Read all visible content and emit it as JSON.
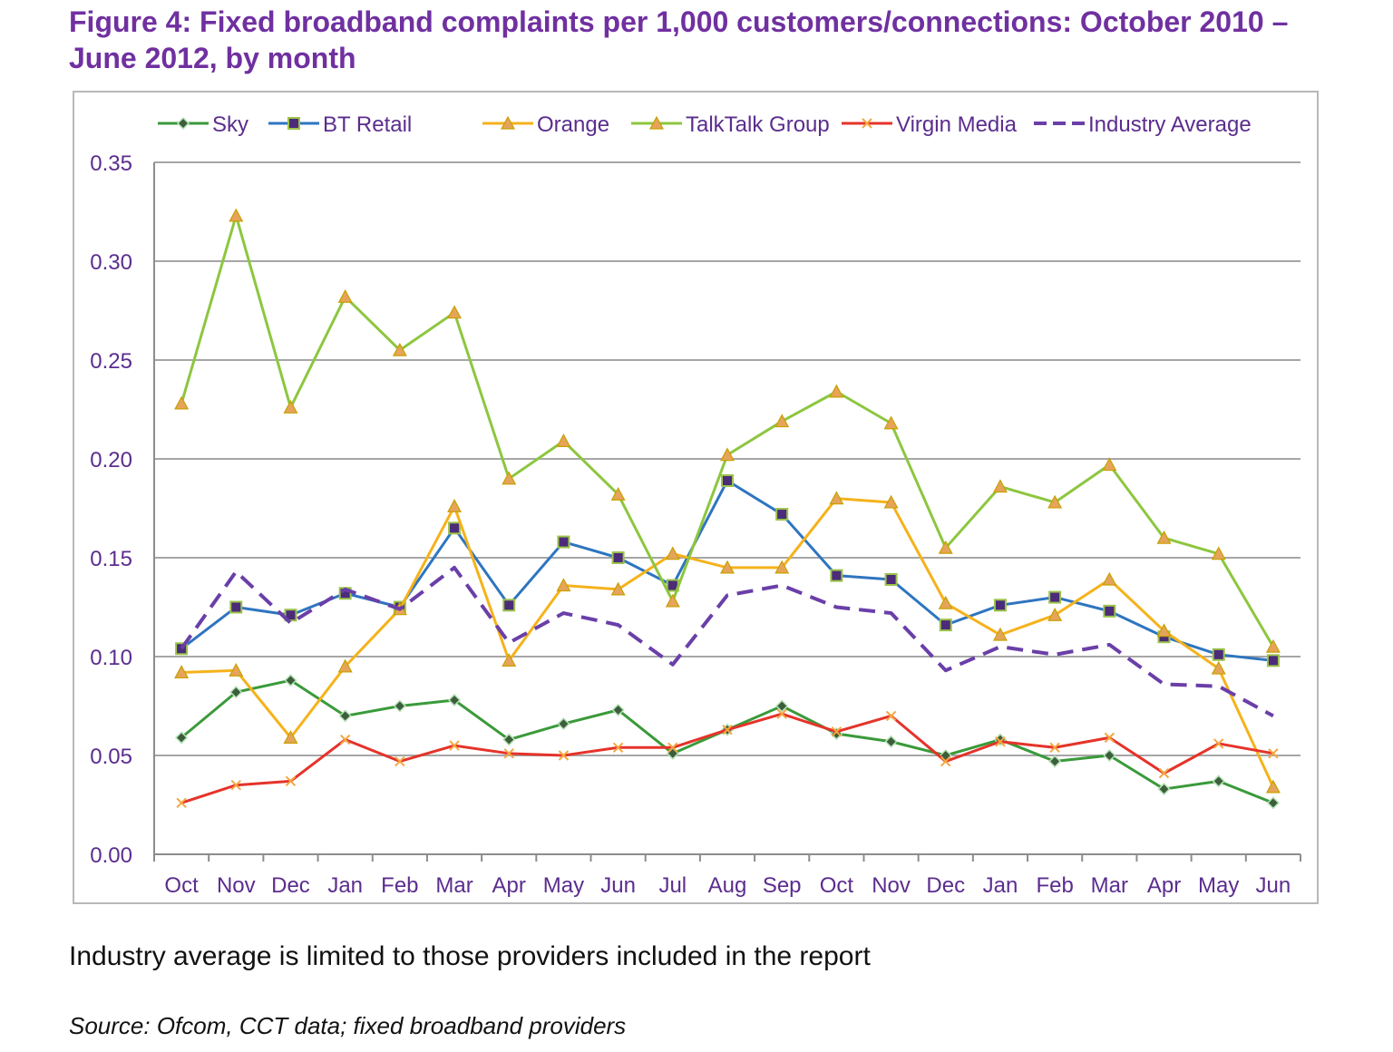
{
  "title": "Figure 4: Fixed broadband complaints per 1,000 customers/connections: October 2010 – June 2012, by month",
  "note": "Industry average is limited to those providers included in the report",
  "source": "Source: Ofcom, CCT data; fixed broadband providers",
  "chart_data": {
    "type": "line",
    "title": "",
    "xlabel": "",
    "ylabel": "",
    "categories": [
      "Oct",
      "Nov",
      "Dec",
      "Jan",
      "Feb",
      "Mar",
      "Apr",
      "May",
      "Jun",
      "Jul",
      "Aug",
      "Sep",
      "Oct",
      "Nov",
      "Dec",
      "Jan",
      "Feb",
      "Mar",
      "Apr",
      "May",
      "Jun"
    ],
    "ylim": [
      0,
      0.35
    ],
    "yticks": [
      "0.00",
      "0.05",
      "0.10",
      "0.15",
      "0.20",
      "0.25",
      "0.30",
      "0.35"
    ],
    "grid": true,
    "legend_position": "top",
    "series": [
      {
        "name": "Sky",
        "color": "#3a9a3a",
        "marker": "diamond",
        "dashed": false,
        "values": [
          0.059,
          0.082,
          0.088,
          0.07,
          0.075,
          0.078,
          0.058,
          0.066,
          0.073,
          0.051,
          0.063,
          0.075,
          0.061,
          0.057,
          0.05,
          0.058,
          0.047,
          0.05,
          0.033,
          0.037,
          0.026
        ]
      },
      {
        "name": "BT Retail",
        "color": "#2e75c0",
        "marker": "square",
        "dashed": false,
        "values": [
          0.104,
          0.125,
          0.121,
          0.132,
          0.125,
          0.165,
          0.126,
          0.158,
          0.15,
          0.136,
          0.189,
          0.172,
          0.141,
          0.139,
          0.116,
          0.126,
          0.13,
          0.123,
          0.11,
          0.101,
          0.098
        ]
      },
      {
        "name": "Orange",
        "color": "#f5b21b",
        "marker": "triangle",
        "dashed": false,
        "values": [
          0.092,
          0.093,
          0.059,
          0.095,
          0.124,
          0.176,
          0.098,
          0.136,
          0.134,
          0.152,
          0.145,
          0.145,
          0.18,
          0.178,
          0.127,
          0.111,
          0.121,
          0.139,
          0.113,
          0.094,
          0.034
        ]
      },
      {
        "name": "TalkTalk Group",
        "color": "#8dc63f",
        "marker": "triangle",
        "dashed": false,
        "values": [
          0.228,
          0.323,
          0.226,
          0.282,
          0.255,
          0.274,
          0.19,
          0.209,
          0.182,
          0.128,
          0.202,
          0.219,
          0.234,
          0.218,
          0.155,
          0.186,
          0.178,
          0.197,
          0.16,
          0.152,
          0.105
        ]
      },
      {
        "name": "Virgin Media",
        "color": "#e5332a",
        "marker": "x",
        "dashed": false,
        "values": [
          0.026,
          0.035,
          0.037,
          0.058,
          0.047,
          0.055,
          0.051,
          0.05,
          0.054,
          0.054,
          0.063,
          0.071,
          0.062,
          0.07,
          0.047,
          0.057,
          0.054,
          0.059,
          0.041,
          0.056,
          0.051
        ]
      },
      {
        "name": "Industry Average",
        "color": "#6a3fa8",
        "marker": "none",
        "dashed": true,
        "values": [
          0.104,
          0.143,
          0.117,
          0.134,
          0.124,
          0.145,
          0.107,
          0.122,
          0.116,
          0.096,
          0.131,
          0.136,
          0.125,
          0.122,
          0.093,
          0.105,
          0.101,
          0.106,
          0.086,
          0.085,
          0.07
        ]
      }
    ]
  }
}
